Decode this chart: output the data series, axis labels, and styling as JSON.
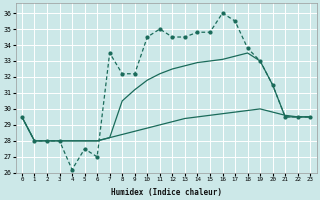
{
  "xlabel": "Humidex (Indice chaleur)",
  "bg_color": "#cce8e8",
  "grid_color": "#ffffff",
  "line_color": "#1a6b5a",
  "xlim": [
    -0.5,
    23.5
  ],
  "ylim": [
    26,
    36.6
  ],
  "yticks": [
    26,
    27,
    28,
    29,
    30,
    31,
    32,
    33,
    34,
    35,
    36
  ],
  "xticks": [
    0,
    1,
    2,
    3,
    4,
    5,
    6,
    7,
    8,
    9,
    10,
    11,
    12,
    13,
    14,
    15,
    16,
    17,
    18,
    19,
    20,
    21,
    22,
    23
  ],
  "curve_jagged_x": [
    0,
    1,
    2,
    3,
    4,
    5,
    6,
    7,
    8,
    9,
    10,
    11,
    12,
    13,
    14,
    15,
    16,
    17,
    18,
    19,
    20,
    21,
    22,
    23
  ],
  "curve_jagged_y": [
    29.5,
    28.0,
    28.0,
    28.0,
    26.2,
    27.5,
    27.0,
    33.5,
    32.2,
    32.2,
    34.5,
    35.0,
    34.5,
    34.5,
    34.8,
    34.8,
    36.0,
    35.5,
    33.8,
    33.0,
    31.5,
    29.5,
    29.5,
    29.5
  ],
  "curve_diag1_x": [
    0,
    1,
    2,
    3,
    4,
    5,
    6,
    7,
    8,
    9,
    10,
    11,
    12,
    13,
    14,
    15,
    16,
    17,
    18,
    19,
    20,
    21,
    22,
    23
  ],
  "curve_diag1_y": [
    29.5,
    28.0,
    28.0,
    28.0,
    28.0,
    28.0,
    28.0,
    28.2,
    28.4,
    28.6,
    28.8,
    29.0,
    29.2,
    29.4,
    29.5,
    29.6,
    29.7,
    29.8,
    29.9,
    30.0,
    29.8,
    29.6,
    29.5,
    29.5
  ],
  "curve_diag2_x": [
    0,
    1,
    2,
    3,
    4,
    5,
    6,
    7,
    8,
    9,
    10,
    11,
    12,
    13,
    14,
    15,
    16,
    17,
    18,
    19,
    20,
    21,
    22,
    23
  ],
  "curve_diag2_y": [
    29.5,
    28.0,
    28.0,
    28.0,
    28.0,
    28.0,
    28.0,
    28.2,
    30.5,
    31.2,
    31.8,
    32.2,
    32.5,
    32.7,
    32.9,
    33.0,
    33.1,
    33.3,
    33.5,
    33.0,
    31.5,
    29.5,
    29.5,
    29.5
  ]
}
